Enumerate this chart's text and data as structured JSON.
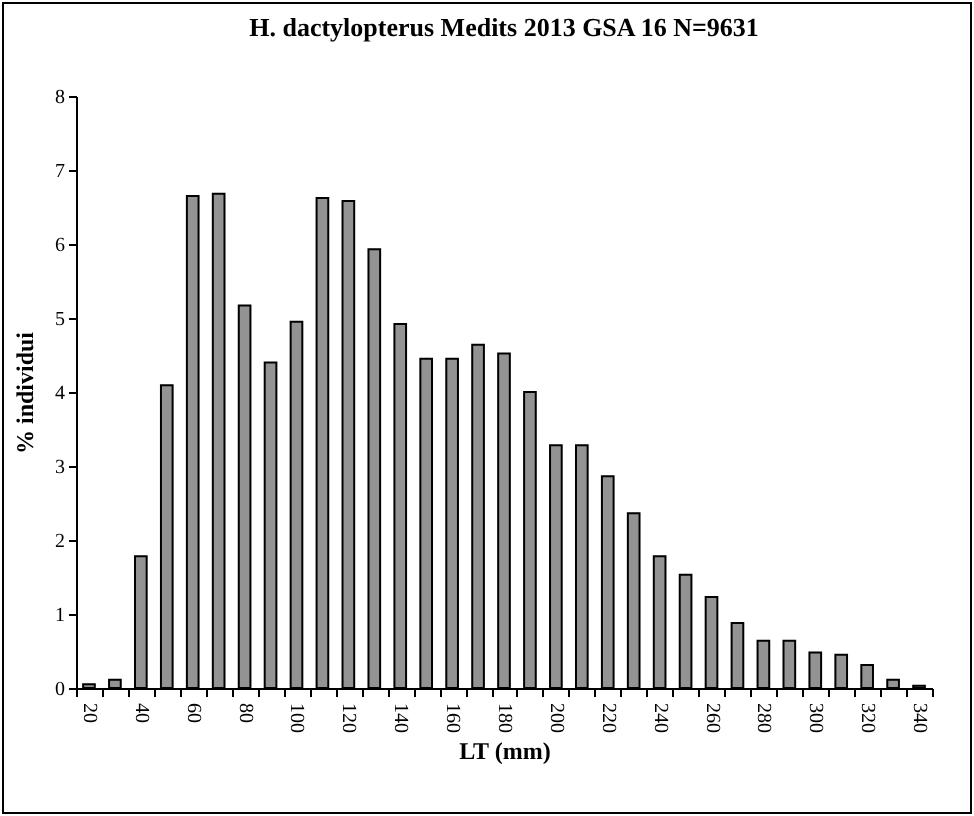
{
  "chart_data": {
    "type": "bar",
    "title": "H. dactylopterus Medits 2013 GSA 16 N=9631",
    "xlabel": "LT (mm)",
    "ylabel": "% individui",
    "categories": [
      "20",
      null,
      "40",
      null,
      "60",
      null,
      "80",
      null,
      "100",
      null,
      "120",
      null,
      "140",
      null,
      "160",
      null,
      "180",
      null,
      "200",
      null,
      "220",
      null,
      "240",
      null,
      "260",
      null,
      "280",
      null,
      "300",
      null,
      "320",
      null,
      "340"
    ],
    "values": [
      0.05,
      0.11,
      1.78,
      4.09,
      6.65,
      6.68,
      5.17,
      4.4,
      4.95,
      6.62,
      6.58,
      5.93,
      4.92,
      4.45,
      4.45,
      4.64,
      4.52,
      4.0,
      3.28,
      3.28,
      2.86,
      2.36,
      1.78,
      1.53,
      1.23,
      0.88,
      0.64,
      0.64,
      0.48,
      0.45,
      0.31,
      0.11,
      0.03
    ],
    "color": "#939393",
    "ylim": [
      0,
      8
    ],
    "yticks": [
      0,
      1,
      2,
      3,
      4,
      5,
      6,
      7,
      8
    ]
  }
}
